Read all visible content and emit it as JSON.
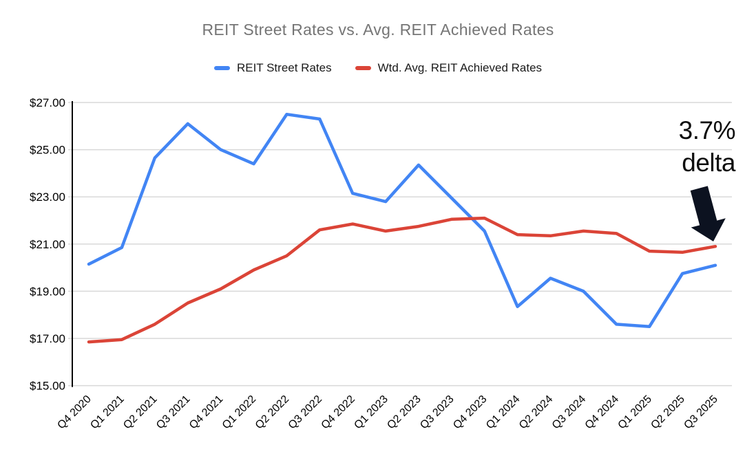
{
  "title": "REIT Street Rates vs. Avg. REIT Achieved Rates",
  "legend": [
    {
      "label": "REIT Street Rates",
      "color": "#4285F4"
    },
    {
      "label": "Wtd. Avg. REIT Achieved Rates",
      "color": "#DB4437"
    }
  ],
  "annotation": {
    "line1": "3.7%",
    "line2": "delta"
  },
  "chart_data": {
    "type": "line",
    "title": "REIT Street Rates vs. Avg. REIT Achieved Rates",
    "xlabel": "",
    "ylabel": "",
    "grid": true,
    "legend_position": "top",
    "ylim": [
      15,
      27
    ],
    "yticks": [
      {
        "value": 27,
        "label": "$27.00"
      },
      {
        "value": 25,
        "label": "$25.00"
      },
      {
        "value": 23,
        "label": "$23.00"
      },
      {
        "value": 21,
        "label": "$21.00"
      },
      {
        "value": 19,
        "label": "$19.00"
      },
      {
        "value": 17,
        "label": "$17.00"
      },
      {
        "value": 15,
        "label": "$15.00"
      }
    ],
    "categories": [
      "Q4 2020",
      "Q1 2021",
      "Q2 2021",
      "Q3 2021",
      "Q4 2021",
      "Q1 2022",
      "Q2 2022",
      "Q3 2022",
      "Q4 2022",
      "Q1 2023",
      "Q2 2023",
      "Q3 2023",
      "Q4 2023",
      "Q1 2024",
      "Q2 2024",
      "Q3 2024",
      "Q4 2024",
      "Q1 2025",
      "Q2 2025",
      "Q3 2025"
    ],
    "series": [
      {
        "name": "REIT Street Rates",
        "color": "#4285F4",
        "values": [
          20.15,
          20.85,
          24.65,
          26.1,
          25.0,
          24.4,
          26.5,
          26.3,
          23.15,
          22.8,
          24.35,
          22.95,
          21.55,
          18.35,
          19.55,
          19.0,
          17.6,
          17.5,
          19.75,
          20.1
        ]
      },
      {
        "name": "Wtd. Avg. REIT Achieved Rates",
        "color": "#DB4437",
        "values": [
          16.85,
          16.95,
          17.6,
          18.5,
          19.1,
          19.9,
          20.5,
          21.6,
          21.85,
          21.55,
          21.75,
          22.05,
          22.1,
          21.4,
          21.35,
          21.55,
          21.45,
          20.7,
          20.65,
          20.9
        ]
      }
    ],
    "annotation_text": "3.7% delta"
  }
}
